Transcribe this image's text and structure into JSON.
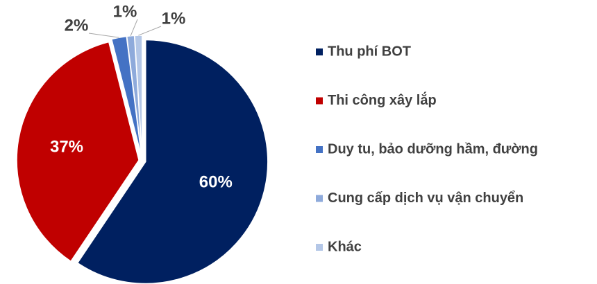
{
  "chart_data": {
    "type": "pie",
    "categories": [
      "Thu phí BOT",
      "Thi công xây lắp",
      "Duy tu, bảo dưỡng hầm, đường",
      "Cung cấp dịch vụ vận chuyển",
      "Khác"
    ],
    "values": [
      60,
      37,
      2,
      1,
      1
    ],
    "value_labels": [
      "60%",
      "37%",
      "2%",
      "1%",
      "1%"
    ],
    "colors": [
      "#002060",
      "#c00000",
      "#4472c4",
      "#8eaadb",
      "#b4c7e7"
    ],
    "legend": "right"
  }
}
